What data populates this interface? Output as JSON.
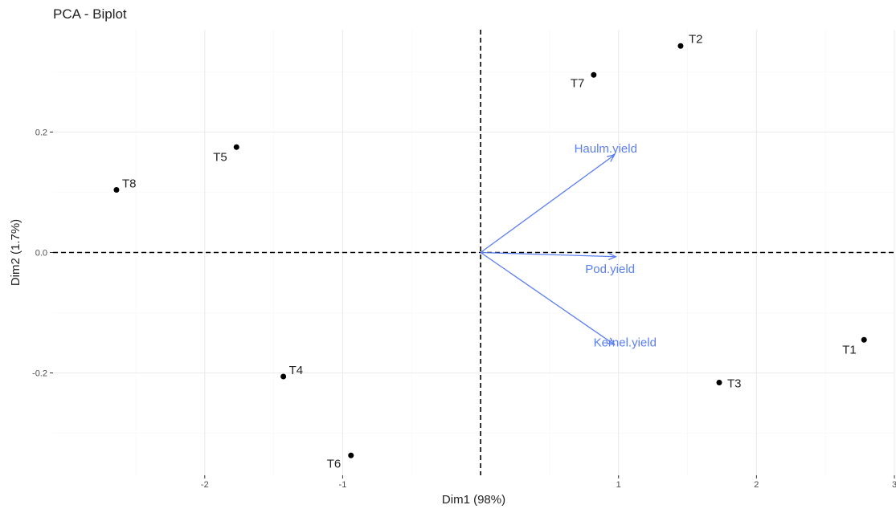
{
  "chart_data": {
    "type": "scatter",
    "title": "PCA - Biplot",
    "xlabel": "Dim1 (98%)",
    "ylabel": "Dim2 (1.7%)",
    "xlim": [
      -3.1,
      3.0
    ],
    "ylim": [
      -0.37,
      0.37
    ],
    "x_ticks": [
      -2,
      -1,
      1,
      2,
      3
    ],
    "x_tick_labels": [
      "-2",
      "-1",
      "1",
      "2",
      "3"
    ],
    "y_ticks": [
      -0.2,
      0.0,
      0.2
    ],
    "y_tick_labels": [
      "-0.2",
      "0.0",
      "0.2"
    ],
    "grid": true,
    "reference_lines": {
      "x": 0,
      "y": 0,
      "style": "dashed"
    },
    "points": [
      {
        "label": "T1",
        "x": 2.78,
        "y": -0.145
      },
      {
        "label": "T2",
        "x": 1.45,
        "y": 0.343
      },
      {
        "label": "T3",
        "x": 1.73,
        "y": -0.216
      },
      {
        "label": "T4",
        "x": -1.43,
        "y": -0.206
      },
      {
        "label": "T5",
        "x": -1.77,
        "y": 0.175
      },
      {
        "label": "T6",
        "x": -0.94,
        "y": -0.337
      },
      {
        "label": "T7",
        "x": 0.82,
        "y": 0.295
      },
      {
        "label": "T8",
        "x": -2.64,
        "y": 0.104
      }
    ],
    "vectors": [
      {
        "label": "Haulm.yield",
        "x": 0.97,
        "y": 0.162
      },
      {
        "label": "Pod.yield",
        "x": 0.98,
        "y": -0.007
      },
      {
        "label": "Kernel.yield",
        "x": 0.97,
        "y": -0.153
      }
    ],
    "colors": {
      "points": "#000000",
      "vectors": "#5b7ff2",
      "grid": "#ebebeb",
      "grid_minor": "#f5f5f5"
    }
  }
}
